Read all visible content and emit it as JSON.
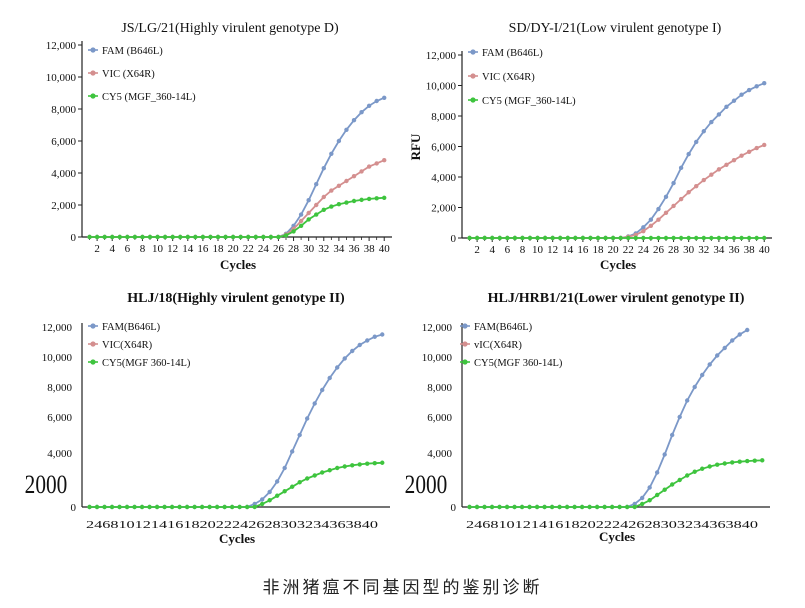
{
  "caption": "非洲猪瘟不同基因型的鉴别诊断",
  "colors": {
    "fam": "#7b98c8",
    "vic": "#d48f8f",
    "cy5": "#3ec43e"
  },
  "chart_data": [
    {
      "type": "line",
      "title": "JS/LG/21(Highly virulent genotype D)",
      "xlabel": "Cycles",
      "ylabel": "",
      "xlim": [
        0,
        40.5
      ],
      "ylim": [
        0,
        12000
      ],
      "x_ticks": [
        "2",
        "4",
        "6",
        "8",
        "10",
        "12",
        "14",
        "16",
        "18",
        "20",
        "22",
        "24",
        "26",
        "28",
        "30",
        "32",
        "34",
        "36",
        "38",
        "40"
      ],
      "y_ticks": [
        "0",
        "2,000",
        "4,000",
        "6,000",
        "8,000",
        "10,000",
        "12,000"
      ],
      "legend": [
        "FAM (B646L)",
        "VIC (X64R)",
        "CY5 (MGF_360-14L)"
      ],
      "series": [
        {
          "name": "FAM (B646L)",
          "x": [
            26,
            27,
            28,
            29,
            30,
            31,
            32,
            33,
            34,
            35,
            36,
            37,
            38,
            39,
            40
          ],
          "y": [
            0,
            200,
            700,
            1400,
            2300,
            3300,
            4300,
            5200,
            6000,
            6700,
            7300,
            7800,
            8200,
            8500,
            8700
          ]
        },
        {
          "name": "VIC (X64R)",
          "x": [
            26,
            27,
            28,
            29,
            30,
            31,
            32,
            33,
            34,
            35,
            36,
            37,
            38,
            39,
            40
          ],
          "y": [
            0,
            150,
            500,
            1000,
            1500,
            2000,
            2500,
            2900,
            3200,
            3500,
            3800,
            4100,
            4400,
            4600,
            4800
          ]
        },
        {
          "name": "CY5 (MGF_360-14L)",
          "x": [
            26,
            27,
            28,
            29,
            30,
            31,
            32,
            33,
            34,
            35,
            36,
            37,
            38,
            39,
            40
          ],
          "y": [
            0,
            100,
            350,
            700,
            1100,
            1400,
            1700,
            1900,
            2050,
            2150,
            2250,
            2320,
            2380,
            2420,
            2450
          ]
        }
      ]
    },
    {
      "type": "line",
      "title": "SD/DY-I/21(Low virulent genotype I)",
      "xlabel": "Cycles",
      "ylabel": "RFU",
      "xlim": [
        0,
        40.5
      ],
      "ylim": [
        0,
        12000
      ],
      "x_ticks": [
        "2",
        "4",
        "6",
        "8",
        "10",
        "12",
        "14",
        "16",
        "18",
        "20",
        "22",
        "24",
        "26",
        "28",
        "30",
        "32",
        "34",
        "36",
        "38",
        "40"
      ],
      "y_ticks": [
        "0",
        "2,000",
        "4,000",
        "6,000",
        "8,000",
        "10,000",
        "12,000"
      ],
      "legend": [
        "FAM (B646L)",
        "VIC (X64R)",
        "CY5 (MGF_360-14L)"
      ],
      "series": [
        {
          "name": "FAM (B646L)",
          "x": [
            21,
            22,
            23,
            24,
            25,
            26,
            27,
            28,
            29,
            30,
            31,
            32,
            33,
            34,
            35,
            36,
            37,
            38,
            39,
            40
          ],
          "y": [
            0,
            100,
            300,
            700,
            1200,
            1900,
            2700,
            3600,
            4600,
            5500,
            6300,
            7000,
            7600,
            8100,
            8600,
            9000,
            9400,
            9700,
            9950,
            10150
          ]
        },
        {
          "name": "VIC (X64R)",
          "x": [
            21,
            22,
            23,
            24,
            25,
            26,
            27,
            28,
            29,
            30,
            31,
            32,
            33,
            34,
            35,
            36,
            37,
            38,
            39,
            40
          ],
          "y": [
            0,
            80,
            200,
            450,
            800,
            1200,
            1650,
            2100,
            2550,
            3000,
            3400,
            3800,
            4150,
            4500,
            4800,
            5100,
            5400,
            5650,
            5900,
            6100
          ]
        },
        {
          "name": "CY5 (MGF_360-14L)",
          "x": [
            21,
            40
          ],
          "y": [
            0,
            0
          ]
        }
      ]
    },
    {
      "type": "line",
      "title": "HLJ/18(Highly virulent genotype II)",
      "xlabel": "Cycles",
      "ylabel": "",
      "xlim": [
        0,
        40.5
      ],
      "ylim": [
        0,
        12000
      ],
      "x_ticks_text": "246810121416182022242628303234363840",
      "y_ticks": [
        "",
        "4,000",
        "6,000",
        "8,000",
        "10,000",
        "12,000"
      ],
      "y_big_tick": "2000",
      "y_zero": "0",
      "legend": [
        "FAM(B646L)",
        "VIC(X64R)",
        "CY5(MGF 360-14L)"
      ],
      "series": [
        {
          "name": "FAM(B646L)",
          "x": [
            22,
            23,
            24,
            25,
            26,
            27,
            28,
            29,
            30,
            31,
            32,
            33,
            34,
            35,
            36,
            37,
            38,
            39,
            40
          ],
          "y": [
            0,
            200,
            500,
            1000,
            1700,
            2600,
            3700,
            4800,
            5900,
            6900,
            7800,
            8600,
            9300,
            9900,
            10400,
            10800,
            11100,
            11350,
            11500
          ]
        },
        {
          "name": "VIC(X64R)",
          "x": [],
          "y": []
        },
        {
          "name": "CY5(MGF 360-14L)",
          "x": [
            23,
            24,
            25,
            26,
            27,
            28,
            29,
            30,
            31,
            32,
            33,
            34,
            35,
            36,
            37,
            38,
            39,
            40
          ],
          "y": [
            0,
            200,
            450,
            750,
            1050,
            1350,
            1650,
            1900,
            2100,
            2300,
            2450,
            2600,
            2700,
            2780,
            2840,
            2890,
            2920,
            2950
          ]
        }
      ]
    },
    {
      "type": "line",
      "title": "HLJ/HRB1/21(Lower virulent genotype II)",
      "xlabel": "Cycles",
      "ylabel": "",
      "xlim": [
        0,
        40.5
      ],
      "ylim": [
        0,
        12000
      ],
      "x_ticks_text": "246810121416182022242628303234363840",
      "y_ticks": [
        "",
        "4,000",
        "6,000",
        "8,000",
        "10,000",
        "12,000"
      ],
      "y_big_tick": "2000",
      "y_zero": "0",
      "legend": [
        "FAM(B646L)",
        "vIC(X64R)",
        "CY5(MGF 360-14L)"
      ],
      "series": [
        {
          "name": "FAM(B646L)",
          "x": [
            22,
            23,
            24,
            25,
            26,
            27,
            28,
            29,
            30,
            31,
            32,
            33,
            34,
            35,
            36,
            37,
            38
          ],
          "y": [
            0,
            200,
            600,
            1300,
            2300,
            3500,
            4800,
            6000,
            7100,
            8000,
            8800,
            9500,
            10100,
            10600,
            11100,
            11500,
            11800
          ]
        },
        {
          "name": "vIC(X64R)",
          "x": [],
          "y": []
        },
        {
          "name": "CY5(MGF 360-14L)",
          "x": [
            23,
            24,
            25,
            26,
            27,
            28,
            29,
            30,
            31,
            32,
            33,
            34,
            35,
            36,
            37,
            38,
            39,
            40
          ],
          "y": [
            0,
            200,
            450,
            800,
            1150,
            1500,
            1800,
            2100,
            2350,
            2550,
            2700,
            2820,
            2900,
            2970,
            3020,
            3060,
            3090,
            3110
          ]
        }
      ]
    }
  ]
}
